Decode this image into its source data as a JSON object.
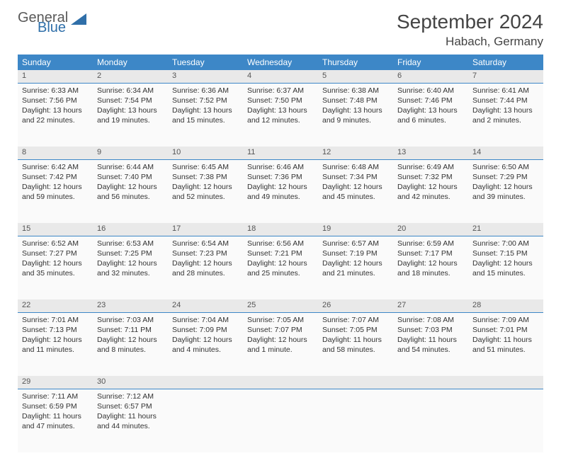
{
  "logo": {
    "text1": "General",
    "text2": "Blue"
  },
  "title": "September 2024",
  "location": "Habach, Germany",
  "colors": {
    "header_bg": "#3d87c7",
    "header_text": "#ffffff",
    "daynum_bg": "#e9e9e9",
    "daynum_border": "#3d87c7",
    "cell_bg": "#fafafa",
    "page_bg": "#ffffff",
    "logo_gray": "#595959",
    "logo_blue": "#2f6fa9"
  },
  "weekdays": [
    "Sunday",
    "Monday",
    "Tuesday",
    "Wednesday",
    "Thursday",
    "Friday",
    "Saturday"
  ],
  "weeks": [
    [
      {
        "n": "1",
        "sr": "Sunrise: 6:33 AM",
        "ss": "Sunset: 7:56 PM",
        "d1": "Daylight: 13 hours",
        "d2": "and 22 minutes."
      },
      {
        "n": "2",
        "sr": "Sunrise: 6:34 AM",
        "ss": "Sunset: 7:54 PM",
        "d1": "Daylight: 13 hours",
        "d2": "and 19 minutes."
      },
      {
        "n": "3",
        "sr": "Sunrise: 6:36 AM",
        "ss": "Sunset: 7:52 PM",
        "d1": "Daylight: 13 hours",
        "d2": "and 15 minutes."
      },
      {
        "n": "4",
        "sr": "Sunrise: 6:37 AM",
        "ss": "Sunset: 7:50 PM",
        "d1": "Daylight: 13 hours",
        "d2": "and 12 minutes."
      },
      {
        "n": "5",
        "sr": "Sunrise: 6:38 AM",
        "ss": "Sunset: 7:48 PM",
        "d1": "Daylight: 13 hours",
        "d2": "and 9 minutes."
      },
      {
        "n": "6",
        "sr": "Sunrise: 6:40 AM",
        "ss": "Sunset: 7:46 PM",
        "d1": "Daylight: 13 hours",
        "d2": "and 6 minutes."
      },
      {
        "n": "7",
        "sr": "Sunrise: 6:41 AM",
        "ss": "Sunset: 7:44 PM",
        "d1": "Daylight: 13 hours",
        "d2": "and 2 minutes."
      }
    ],
    [
      {
        "n": "8",
        "sr": "Sunrise: 6:42 AM",
        "ss": "Sunset: 7:42 PM",
        "d1": "Daylight: 12 hours",
        "d2": "and 59 minutes."
      },
      {
        "n": "9",
        "sr": "Sunrise: 6:44 AM",
        "ss": "Sunset: 7:40 PM",
        "d1": "Daylight: 12 hours",
        "d2": "and 56 minutes."
      },
      {
        "n": "10",
        "sr": "Sunrise: 6:45 AM",
        "ss": "Sunset: 7:38 PM",
        "d1": "Daylight: 12 hours",
        "d2": "and 52 minutes."
      },
      {
        "n": "11",
        "sr": "Sunrise: 6:46 AM",
        "ss": "Sunset: 7:36 PM",
        "d1": "Daylight: 12 hours",
        "d2": "and 49 minutes."
      },
      {
        "n": "12",
        "sr": "Sunrise: 6:48 AM",
        "ss": "Sunset: 7:34 PM",
        "d1": "Daylight: 12 hours",
        "d2": "and 45 minutes."
      },
      {
        "n": "13",
        "sr": "Sunrise: 6:49 AM",
        "ss": "Sunset: 7:32 PM",
        "d1": "Daylight: 12 hours",
        "d2": "and 42 minutes."
      },
      {
        "n": "14",
        "sr": "Sunrise: 6:50 AM",
        "ss": "Sunset: 7:29 PM",
        "d1": "Daylight: 12 hours",
        "d2": "and 39 minutes."
      }
    ],
    [
      {
        "n": "15",
        "sr": "Sunrise: 6:52 AM",
        "ss": "Sunset: 7:27 PM",
        "d1": "Daylight: 12 hours",
        "d2": "and 35 minutes."
      },
      {
        "n": "16",
        "sr": "Sunrise: 6:53 AM",
        "ss": "Sunset: 7:25 PM",
        "d1": "Daylight: 12 hours",
        "d2": "and 32 minutes."
      },
      {
        "n": "17",
        "sr": "Sunrise: 6:54 AM",
        "ss": "Sunset: 7:23 PM",
        "d1": "Daylight: 12 hours",
        "d2": "and 28 minutes."
      },
      {
        "n": "18",
        "sr": "Sunrise: 6:56 AM",
        "ss": "Sunset: 7:21 PM",
        "d1": "Daylight: 12 hours",
        "d2": "and 25 minutes."
      },
      {
        "n": "19",
        "sr": "Sunrise: 6:57 AM",
        "ss": "Sunset: 7:19 PM",
        "d1": "Daylight: 12 hours",
        "d2": "and 21 minutes."
      },
      {
        "n": "20",
        "sr": "Sunrise: 6:59 AM",
        "ss": "Sunset: 7:17 PM",
        "d1": "Daylight: 12 hours",
        "d2": "and 18 minutes."
      },
      {
        "n": "21",
        "sr": "Sunrise: 7:00 AM",
        "ss": "Sunset: 7:15 PM",
        "d1": "Daylight: 12 hours",
        "d2": "and 15 minutes."
      }
    ],
    [
      {
        "n": "22",
        "sr": "Sunrise: 7:01 AM",
        "ss": "Sunset: 7:13 PM",
        "d1": "Daylight: 12 hours",
        "d2": "and 11 minutes."
      },
      {
        "n": "23",
        "sr": "Sunrise: 7:03 AM",
        "ss": "Sunset: 7:11 PM",
        "d1": "Daylight: 12 hours",
        "d2": "and 8 minutes."
      },
      {
        "n": "24",
        "sr": "Sunrise: 7:04 AM",
        "ss": "Sunset: 7:09 PM",
        "d1": "Daylight: 12 hours",
        "d2": "and 4 minutes."
      },
      {
        "n": "25",
        "sr": "Sunrise: 7:05 AM",
        "ss": "Sunset: 7:07 PM",
        "d1": "Daylight: 12 hours",
        "d2": "and 1 minute."
      },
      {
        "n": "26",
        "sr": "Sunrise: 7:07 AM",
        "ss": "Sunset: 7:05 PM",
        "d1": "Daylight: 11 hours",
        "d2": "and 58 minutes."
      },
      {
        "n": "27",
        "sr": "Sunrise: 7:08 AM",
        "ss": "Sunset: 7:03 PM",
        "d1": "Daylight: 11 hours",
        "d2": "and 54 minutes."
      },
      {
        "n": "28",
        "sr": "Sunrise: 7:09 AM",
        "ss": "Sunset: 7:01 PM",
        "d1": "Daylight: 11 hours",
        "d2": "and 51 minutes."
      }
    ],
    [
      {
        "n": "29",
        "sr": "Sunrise: 7:11 AM",
        "ss": "Sunset: 6:59 PM",
        "d1": "Daylight: 11 hours",
        "d2": "and 47 minutes."
      },
      {
        "n": "30",
        "sr": "Sunrise: 7:12 AM",
        "ss": "Sunset: 6:57 PM",
        "d1": "Daylight: 11 hours",
        "d2": "and 44 minutes."
      },
      null,
      null,
      null,
      null,
      null
    ]
  ]
}
